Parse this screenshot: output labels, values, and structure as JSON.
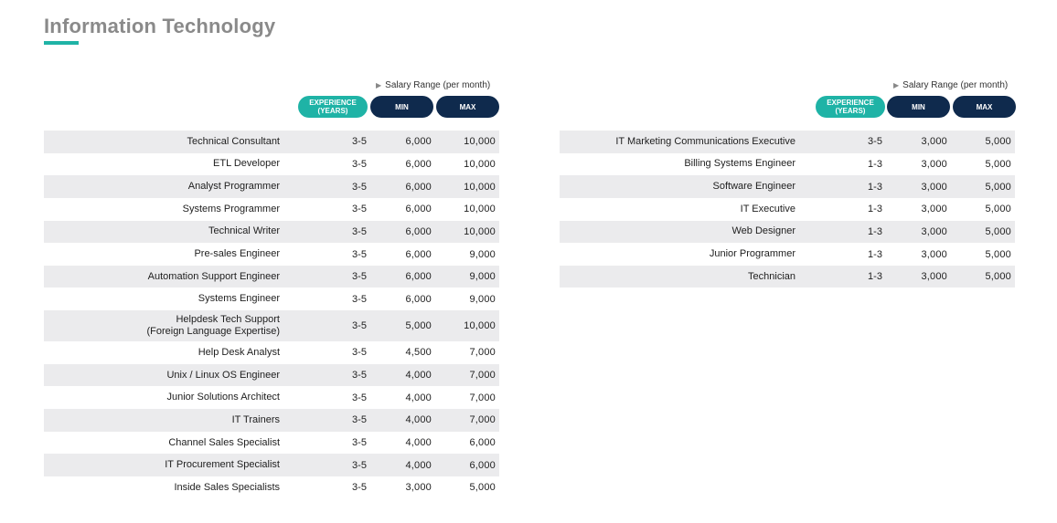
{
  "page": {
    "title": "Information Technology",
    "accent_color": "#1fb3a6",
    "header_color": "#0f2a4d"
  },
  "headers": {
    "salary_range": "Salary Range (per month)",
    "salary_icon": "play-triangle-icon",
    "experience_line1": "EXPERIENCE",
    "experience_line2": "(YEARS)",
    "min": "MIN",
    "max": "MAX"
  },
  "left_table": {
    "rows": [
      {
        "title": "Technical Consultant",
        "experience": "3-5",
        "min": "6,000",
        "max": "10,000"
      },
      {
        "title": "ETL Developer",
        "experience": "3-5",
        "min": "6,000",
        "max": "10,000"
      },
      {
        "title": "Analyst Programmer",
        "experience": "3-5",
        "min": "6,000",
        "max": "10,000"
      },
      {
        "title": "Systems Programmer",
        "experience": "3-5",
        "min": "6,000",
        "max": "10,000"
      },
      {
        "title": "Technical Writer",
        "experience": "3-5",
        "min": "6,000",
        "max": "10,000"
      },
      {
        "title": "Pre-sales Engineer",
        "experience": "3-5",
        "min": "6,000",
        "max": "9,000"
      },
      {
        "title": "Automation  Support Engineer",
        "experience": "3-5",
        "min": "6,000",
        "max": "9,000"
      },
      {
        "title": "Systems Engineer",
        "experience": "3-5",
        "min": "6,000",
        "max": "9,000"
      },
      {
        "title": "Helpdesk Tech Support",
        "title_line2": "(Foreign Language Expertise)",
        "experience": "3-5",
        "min": "5,000",
        "max": "10,000"
      },
      {
        "title": "Help Desk Analyst",
        "experience": "3-5",
        "min": "4,500",
        "max": "7,000"
      },
      {
        "title": "Unix / Linux OS Engineer",
        "experience": "3-5",
        "min": "4,000",
        "max": "7,000"
      },
      {
        "title": "Junior Solutions Architect",
        "experience": "3-5",
        "min": "4,000",
        "max": "7,000"
      },
      {
        "title": "IT Trainers",
        "experience": "3-5",
        "min": "4,000",
        "max": "7,000"
      },
      {
        "title": "Channel Sales Specialist",
        "experience": "3-5",
        "min": "4,000",
        "max": "6,000"
      },
      {
        "title": "IT Procurement Specialist",
        "experience": "3-5",
        "min": "4,000",
        "max": "6,000"
      },
      {
        "title": "Inside Sales Specialists",
        "experience": "3-5",
        "min": "3,000",
        "max": "5,000"
      }
    ]
  },
  "right_table": {
    "rows": [
      {
        "title": "IT Marketing Communications Executive",
        "experience": "3-5",
        "min": "3,000",
        "max": "5,000"
      },
      {
        "title": "Billing Systems Engineer",
        "experience": "1-3",
        "min": "3,000",
        "max": "5,000"
      },
      {
        "title": "Software Engineer",
        "experience": "1-3",
        "min": "3,000",
        "max": "5,000"
      },
      {
        "title": "IT Executive",
        "experience": "1-3",
        "min": "3,000",
        "max": "5,000"
      },
      {
        "title": "Web Designer",
        "experience": "1-3",
        "min": "3,000",
        "max": "5,000"
      },
      {
        "title": "Junior Programmer",
        "experience": "1-3",
        "min": "3,000",
        "max": "5,000"
      },
      {
        "title": "Technician",
        "experience": "1-3",
        "min": "3,000",
        "max": "5,000"
      }
    ]
  }
}
